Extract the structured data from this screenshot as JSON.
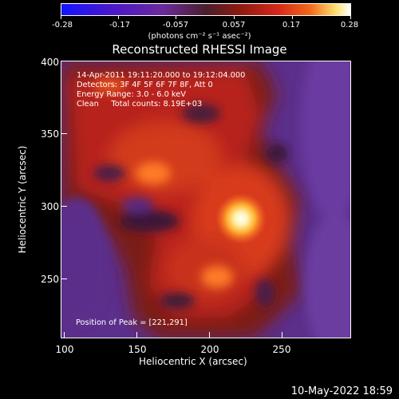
{
  "colorbar": {
    "labels": [
      "-0.28",
      "-0.17",
      "-0.057",
      "0.057",
      "0.17",
      "0.28"
    ],
    "units": "(photons cm⁻² s⁻¹ asec⁻²)"
  },
  "title": "Reconstructed RHESSI Image",
  "annotations": {
    "line1": "14-Apr-2011 19:11:20.000 to 19:12:04.000",
    "line2": "Detectors: 3F 4F 5F 6F 7F 8F, Att 0",
    "line3": "Energy Range: 3.0 - 6.0 keV",
    "line4": "Clean     Total counts: 8.19E+03",
    "peak": "Position of Peak = [221,291]"
  },
  "axes": {
    "xlabel": "Heliocentric X (arcsec)",
    "ylabel": "Heliocentric Y (arcsec)",
    "xticks": [
      "100",
      "150",
      "200",
      "250"
    ],
    "yticks": [
      "400",
      "350",
      "300",
      "250"
    ]
  },
  "datetime": "10-May-2022 18:59"
}
